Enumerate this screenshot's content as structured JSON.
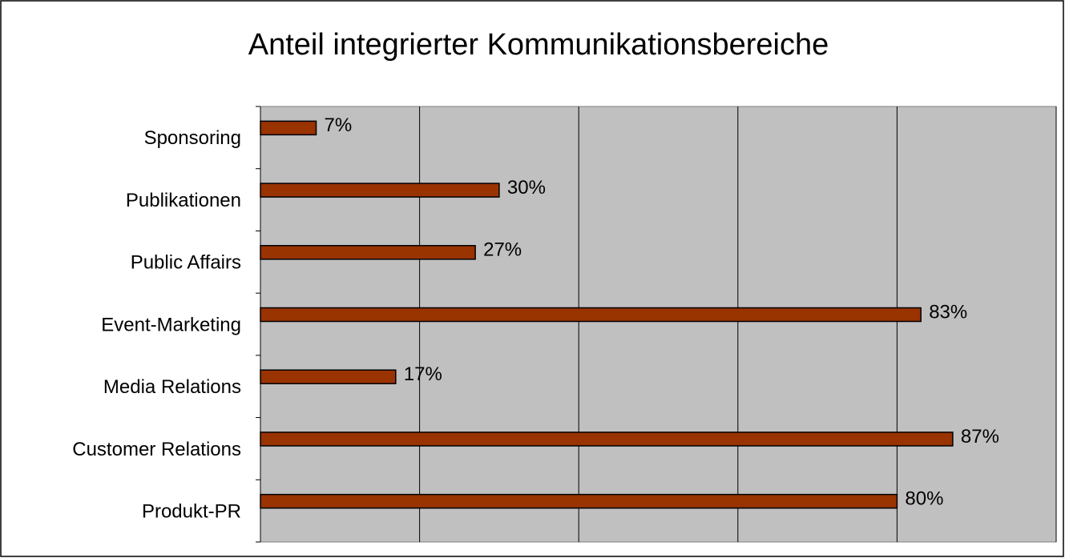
{
  "chart_data": {
    "type": "bar",
    "orientation": "horizontal",
    "title": "Anteil integrierter Kommunikationsbereiche",
    "categories": [
      "Sponsoring",
      "Publikationen",
      "Public Affairs",
      "Event-Marketing",
      "Media Relations",
      "Customer Relations",
      "Produkt-PR"
    ],
    "values": [
      7,
      30,
      27,
      83,
      17,
      87,
      80
    ],
    "value_labels": [
      "7%",
      "30%",
      "27%",
      "83%",
      "17%",
      "87%",
      "80%"
    ],
    "color": "#993300",
    "xlim": [
      0,
      100
    ],
    "xticks": [
      0,
      20,
      40,
      60,
      80,
      100
    ],
    "grid": true
  }
}
